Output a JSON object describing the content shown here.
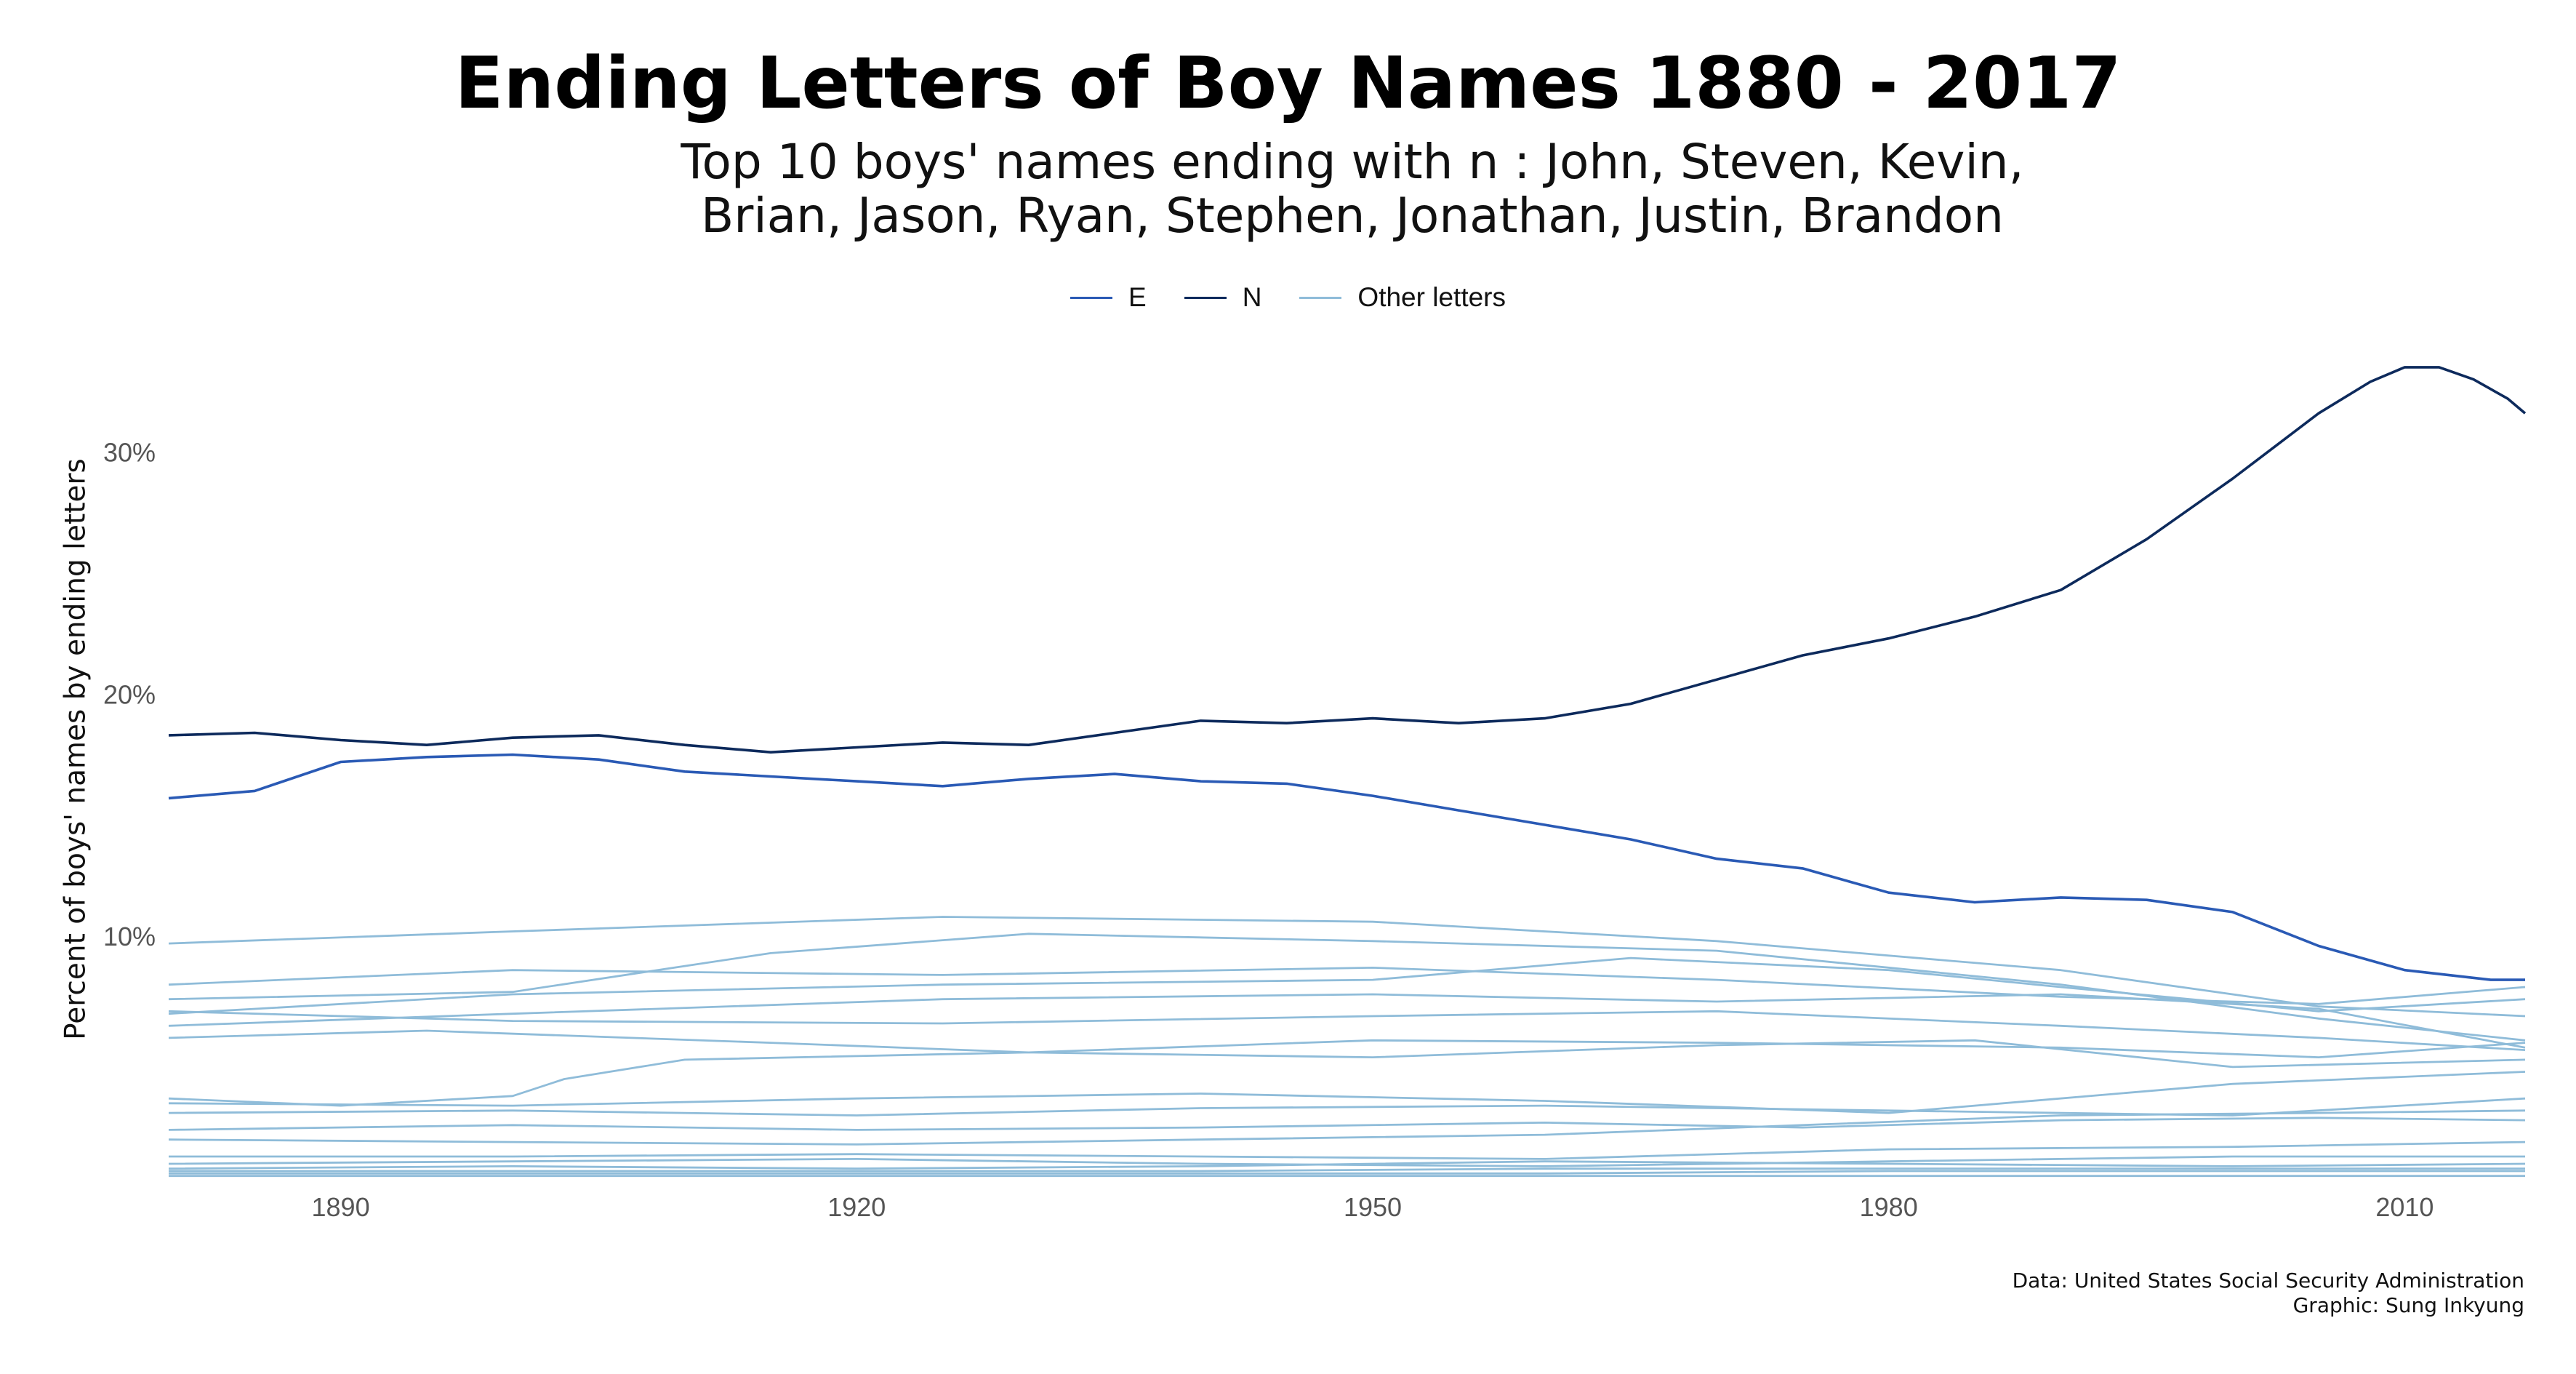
{
  "chart_data": {
    "type": "line",
    "title": "Ending Letters of Boy Names 1880 - 2017",
    "subtitle_lines": [
      "Top 10 boys' names ending with n : John, Steven, Kevin,",
      "Brian, Jason, Ryan, Stephen, Jonathan, Justin, Brandon"
    ],
    "xlabel": "",
    "ylabel": "Percent of boys' names by ending letters",
    "xlim": [
      1880,
      2017
    ],
    "ylim": [
      0,
      35
    ],
    "x_ticks": [
      1890,
      1920,
      1950,
      1980,
      2010
    ],
    "y_ticks": [
      10,
      20,
      30
    ],
    "y_tick_labels": [
      "10%",
      "20%",
      "30%"
    ],
    "grid": false,
    "legend_position": "top",
    "legend": [
      {
        "label": "E",
        "color": "#2a5ab5"
      },
      {
        "label": "N",
        "color": "#0d2a5c"
      },
      {
        "label": "Other letters",
        "color": "#8fbcd9"
      }
    ],
    "series": [
      {
        "name": "N",
        "color": "#0d2a5c",
        "points": [
          [
            1880,
            18.3
          ],
          [
            1885,
            18.4
          ],
          [
            1890,
            18.1
          ],
          [
            1895,
            17.9
          ],
          [
            1900,
            18.2
          ],
          [
            1905,
            18.3
          ],
          [
            1910,
            17.9
          ],
          [
            1915,
            17.6
          ],
          [
            1920,
            17.8
          ],
          [
            1925,
            18.0
          ],
          [
            1930,
            17.9
          ],
          [
            1935,
            18.4
          ],
          [
            1940,
            18.9
          ],
          [
            1945,
            18.8
          ],
          [
            1950,
            19.0
          ],
          [
            1955,
            18.8
          ],
          [
            1960,
            19.0
          ],
          [
            1965,
            19.6
          ],
          [
            1970,
            20.6
          ],
          [
            1975,
            21.6
          ],
          [
            1980,
            22.3
          ],
          [
            1985,
            23.2
          ],
          [
            1990,
            24.3
          ],
          [
            1995,
            26.4
          ],
          [
            2000,
            28.9
          ],
          [
            2005,
            31.6
          ],
          [
            2008,
            32.9
          ],
          [
            2010,
            33.5
          ],
          [
            2012,
            33.5
          ],
          [
            2014,
            33.0
          ],
          [
            2016,
            32.2
          ],
          [
            2017,
            31.6
          ]
        ]
      },
      {
        "name": "E",
        "color": "#2a5ab5",
        "points": [
          [
            1880,
            15.7
          ],
          [
            1885,
            16.0
          ],
          [
            1890,
            17.2
          ],
          [
            1895,
            17.4
          ],
          [
            1900,
            17.5
          ],
          [
            1905,
            17.3
          ],
          [
            1910,
            16.8
          ],
          [
            1915,
            16.6
          ],
          [
            1920,
            16.4
          ],
          [
            1925,
            16.2
          ],
          [
            1930,
            16.5
          ],
          [
            1935,
            16.7
          ],
          [
            1940,
            16.4
          ],
          [
            1945,
            16.3
          ],
          [
            1950,
            15.8
          ],
          [
            1955,
            15.2
          ],
          [
            1960,
            14.6
          ],
          [
            1965,
            14.0
          ],
          [
            1970,
            13.2
          ],
          [
            1975,
            12.8
          ],
          [
            1980,
            11.8
          ],
          [
            1985,
            11.4
          ],
          [
            1990,
            11.6
          ],
          [
            1995,
            11.5
          ],
          [
            2000,
            11.0
          ],
          [
            2005,
            9.6
          ],
          [
            2010,
            8.6
          ],
          [
            2015,
            8.2
          ],
          [
            2017,
            8.2
          ]
        ]
      },
      {
        "name": "",
        "color": "#8fbcd9",
        "points": [
          [
            1880,
            9.7
          ],
          [
            1900,
            10.2
          ],
          [
            1925,
            10.8
          ],
          [
            1950,
            10.6
          ],
          [
            1970,
            9.8
          ],
          [
            1990,
            8.6
          ],
          [
            2005,
            7.1
          ],
          [
            2017,
            6.7
          ]
        ]
      },
      {
        "name": "",
        "color": "#8fbcd9",
        "points": [
          [
            1880,
            7.4
          ],
          [
            1900,
            7.7
          ],
          [
            1915,
            9.3
          ],
          [
            1930,
            10.1
          ],
          [
            1950,
            9.8
          ],
          [
            1970,
            9.4
          ],
          [
            1990,
            8.0
          ],
          [
            2005,
            6.6
          ],
          [
            2017,
            5.7
          ]
        ]
      },
      {
        "name": "",
        "color": "#8fbcd9",
        "points": [
          [
            1880,
            8.0
          ],
          [
            1900,
            8.6
          ],
          [
            1925,
            8.4
          ],
          [
            1950,
            8.7
          ],
          [
            1970,
            8.2
          ],
          [
            1990,
            7.5
          ],
          [
            2005,
            7.2
          ],
          [
            2017,
            7.9
          ]
        ]
      },
      {
        "name": "",
        "color": "#8fbcd9",
        "points": [
          [
            1880,
            6.8
          ],
          [
            1900,
            7.6
          ],
          [
            1925,
            8.0
          ],
          [
            1950,
            8.2
          ],
          [
            1965,
            9.1
          ],
          [
            1980,
            8.6
          ],
          [
            1990,
            7.9
          ],
          [
            2005,
            6.9
          ],
          [
            2017,
            7.4
          ]
        ]
      },
      {
        "name": "",
        "color": "#8fbcd9",
        "points": [
          [
            1880,
            6.3
          ],
          [
            1900,
            6.8
          ],
          [
            1925,
            7.4
          ],
          [
            1950,
            7.6
          ],
          [
            1970,
            7.3
          ],
          [
            1990,
            7.6
          ],
          [
            2005,
            7.0
          ],
          [
            2017,
            5.4
          ]
        ]
      },
      {
        "name": "",
        "color": "#8fbcd9",
        "points": [
          [
            1880,
            6.9
          ],
          [
            1900,
            6.5
          ],
          [
            1925,
            6.4
          ],
          [
            1950,
            6.7
          ],
          [
            1970,
            6.9
          ],
          [
            1990,
            6.3
          ],
          [
            2005,
            5.8
          ],
          [
            2017,
            5.3
          ]
        ]
      },
      {
        "name": "",
        "color": "#8fbcd9",
        "points": [
          [
            1880,
            5.8
          ],
          [
            1895,
            6.1
          ],
          [
            1915,
            5.6
          ],
          [
            1930,
            5.2
          ],
          [
            1950,
            5.0
          ],
          [
            1970,
            5.5
          ],
          [
            1985,
            5.7
          ],
          [
            2000,
            4.6
          ],
          [
            2017,
            4.9
          ]
        ]
      },
      {
        "name": "",
        "color": "#8fbcd9",
        "points": [
          [
            1880,
            3.3
          ],
          [
            1890,
            3.0
          ],
          [
            1900,
            3.4
          ],
          [
            1903,
            4.1
          ],
          [
            1910,
            4.9
          ],
          [
            1930,
            5.2
          ],
          [
            1950,
            5.7
          ],
          [
            1970,
            5.6
          ],
          [
            1990,
            5.4
          ],
          [
            2005,
            5.0
          ],
          [
            2017,
            5.6
          ]
        ]
      },
      {
        "name": "",
        "color": "#8fbcd9",
        "points": [
          [
            1880,
            3.1
          ],
          [
            1900,
            3.0
          ],
          [
            1920,
            3.3
          ],
          [
            1940,
            3.5
          ],
          [
            1960,
            3.2
          ],
          [
            1980,
            2.7
          ],
          [
            2000,
            3.9
          ],
          [
            2017,
            4.4
          ]
        ]
      },
      {
        "name": "",
        "color": "#8fbcd9",
        "points": [
          [
            1880,
            2.7
          ],
          [
            1900,
            2.8
          ],
          [
            1920,
            2.6
          ],
          [
            1940,
            2.9
          ],
          [
            1960,
            3.0
          ],
          [
            1980,
            2.8
          ],
          [
            2000,
            2.6
          ],
          [
            2017,
            3.3
          ]
        ]
      },
      {
        "name": "",
        "color": "#8fbcd9",
        "points": [
          [
            1880,
            2.0
          ],
          [
            1900,
            2.2
          ],
          [
            1920,
            2.0
          ],
          [
            1940,
            2.1
          ],
          [
            1960,
            2.3
          ],
          [
            1975,
            2.1
          ],
          [
            1990,
            2.4
          ],
          [
            2005,
            2.5
          ],
          [
            2017,
            2.4
          ]
        ]
      },
      {
        "name": "",
        "color": "#8fbcd9",
        "points": [
          [
            1880,
            1.6
          ],
          [
            1900,
            1.5
          ],
          [
            1920,
            1.4
          ],
          [
            1940,
            1.6
          ],
          [
            1960,
            1.8
          ],
          [
            1975,
            2.2
          ],
          [
            1990,
            2.6
          ],
          [
            2005,
            2.7
          ],
          [
            2017,
            2.8
          ]
        ]
      },
      {
        "name": "",
        "color": "#8fbcd9",
        "points": [
          [
            1880,
            0.9
          ],
          [
            1900,
            0.9
          ],
          [
            1920,
            1.0
          ],
          [
            1940,
            0.9
          ],
          [
            1960,
            0.8
          ],
          [
            1980,
            1.2
          ],
          [
            2000,
            1.3
          ],
          [
            2017,
            1.5
          ]
        ]
      },
      {
        "name": "",
        "color": "#8fbcd9",
        "points": [
          [
            1880,
            0.6
          ],
          [
            1900,
            0.7
          ],
          [
            1920,
            0.8
          ],
          [
            1940,
            0.6
          ],
          [
            1960,
            0.5
          ],
          [
            1980,
            0.7
          ],
          [
            2000,
            0.9
          ],
          [
            2017,
            0.9
          ]
        ]
      },
      {
        "name": "",
        "color": "#8fbcd9",
        "points": [
          [
            1880,
            0.4
          ],
          [
            1900,
            0.5
          ],
          [
            1920,
            0.4
          ],
          [
            1940,
            0.5
          ],
          [
            1960,
            0.7
          ],
          [
            1980,
            0.6
          ],
          [
            2000,
            0.5
          ],
          [
            2017,
            0.6
          ]
        ]
      },
      {
        "name": "",
        "color": "#8fbcd9",
        "points": [
          [
            1880,
            0.3
          ],
          [
            1900,
            0.3
          ],
          [
            1920,
            0.3
          ],
          [
            1940,
            0.3
          ],
          [
            1960,
            0.4
          ],
          [
            1980,
            0.4
          ],
          [
            2000,
            0.4
          ],
          [
            2017,
            0.4
          ]
        ]
      },
      {
        "name": "",
        "color": "#8fbcd9",
        "points": [
          [
            1880,
            0.2
          ],
          [
            1900,
            0.2
          ],
          [
            1920,
            0.2
          ],
          [
            1940,
            0.2
          ],
          [
            1960,
            0.2
          ],
          [
            1980,
            0.3
          ],
          [
            2000,
            0.3
          ],
          [
            2017,
            0.3
          ]
        ]
      },
      {
        "name": "",
        "color": "#8fbcd9",
        "points": [
          [
            1880,
            0.1
          ],
          [
            1900,
            0.1
          ],
          [
            1920,
            0.1
          ],
          [
            1940,
            0.1
          ],
          [
            1960,
            0.1
          ],
          [
            1980,
            0.1
          ],
          [
            2000,
            0.1
          ],
          [
            2017,
            0.1
          ]
        ]
      }
    ],
    "caption_lines": [
      "Data: United States Social Security Administration",
      "Graphic: Sung Inkyung"
    ]
  }
}
